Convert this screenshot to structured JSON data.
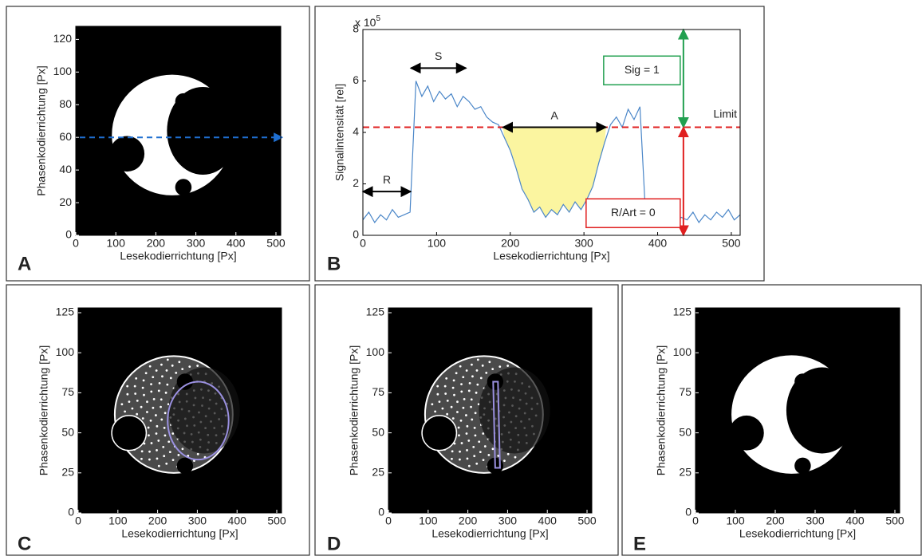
{
  "chart_data": [
    {
      "type": "image",
      "panel_label": "A",
      "x_label": "Lesekodierrichtung [Px]",
      "y_label": "Phasenkodierrichtung [Px]",
      "xlim": [
        0,
        512
      ],
      "ylim": [
        0,
        128
      ],
      "xticks": [
        0,
        100,
        200,
        300,
        400,
        500
      ],
      "yticks": [
        0,
        20,
        40,
        60,
        80,
        100,
        120
      ],
      "profile_y": 60,
      "profile_color": "#1f6fd1"
    },
    {
      "type": "line",
      "panel_label": "B",
      "x_label": "Lesekodierrichtung [Px]",
      "y_label": "Signalintensität [rel]",
      "y_multiplier": "x 10",
      "y_exponent": "5",
      "xlim": [
        0,
        512
      ],
      "ylim": [
        0,
        8
      ],
      "xticks": [
        0,
        100,
        200,
        300,
        400,
        500
      ],
      "yticks": [
        0,
        2,
        4,
        6,
        8
      ],
      "color": "#4a86c8",
      "x": [
        0,
        8,
        16,
        24,
        32,
        40,
        48,
        56,
        64,
        72,
        80,
        88,
        96,
        104,
        112,
        120,
        128,
        136,
        144,
        152,
        160,
        168,
        176,
        184,
        192,
        200,
        208,
        216,
        224,
        232,
        240,
        248,
        256,
        264,
        272,
        280,
        288,
        296,
        304,
        312,
        320,
        328,
        336,
        344,
        352,
        360,
        368,
        376,
        384,
        392,
        400,
        408,
        416,
        424,
        432,
        440,
        448,
        456,
        464,
        472,
        480,
        488,
        496,
        504,
        512
      ],
      "values": [
        0.6,
        0.9,
        0.5,
        0.8,
        0.6,
        1.0,
        0.7,
        0.8,
        0.9,
        6.0,
        5.4,
        5.8,
        5.2,
        5.6,
        5.3,
        5.5,
        5.0,
        5.4,
        5.2,
        4.9,
        5.0,
        4.6,
        4.4,
        4.3,
        3.8,
        3.3,
        2.6,
        1.8,
        1.4,
        0.9,
        1.1,
        0.7,
        1.0,
        0.8,
        1.2,
        0.9,
        1.3,
        1.0,
        1.4,
        1.9,
        2.8,
        3.6,
        4.3,
        4.6,
        4.2,
        4.9,
        4.5,
        5.0,
        0.6,
        0.5,
        0.8,
        0.6,
        0.9,
        0.5,
        0.7,
        0.6,
        0.9,
        0.5,
        0.8,
        0.6,
        0.9,
        0.7,
        1.0,
        0.6,
        0.8
      ],
      "limit": 4.2,
      "limit_label": "Limit",
      "limit_color": "#e02020",
      "regions": [
        {
          "label": "R",
          "x": [
            0,
            65
          ],
          "y": 1.7
        },
        {
          "label": "S",
          "x": [
            65,
            140
          ],
          "y": 6.5
        },
        {
          "label": "A",
          "x": [
            190,
            330
          ],
          "y": 4.2
        }
      ],
      "area_color": "#fbf5a0",
      "levels": [
        {
          "label": "Sig = 1",
          "x": 435,
          "y": [
            4.2,
            8
          ],
          "color": "#22a050"
        },
        {
          "label": "R/Art = 0",
          "x": 435,
          "y": [
            0,
            4.2
          ],
          "color": "#e02020"
        }
      ]
    },
    {
      "type": "image",
      "panel_label": "C",
      "x_label": "Lesekodierrichtung [Px]",
      "y_label": "Phasenkodierrichtung [Px]",
      "xlim": [
        0,
        512
      ],
      "ylim": [
        0,
        128
      ],
      "xticks": [
        0,
        100,
        200,
        300,
        400,
        500
      ],
      "yticks": [
        0,
        25,
        50,
        75,
        100,
        125
      ]
    },
    {
      "type": "image",
      "panel_label": "D",
      "x_label": "Lesekodierrichtung [Px]",
      "y_label": "Phasenkodierrichtung [Px]",
      "xlim": [
        0,
        512
      ],
      "ylim": [
        0,
        128
      ],
      "xticks": [
        0,
        100,
        200,
        300,
        400,
        500
      ],
      "yticks": [
        0,
        25,
        50,
        75,
        100,
        125
      ]
    },
    {
      "type": "image",
      "panel_label": "E",
      "x_label": "Lesekodierrichtung [Px]",
      "y_label": "Phasenkodierrichtung [Px]",
      "xlim": [
        0,
        512
      ],
      "ylim": [
        0,
        128
      ],
      "xticks": [
        0,
        100,
        200,
        300,
        400,
        500
      ],
      "yticks": [
        0,
        25,
        50,
        75,
        100,
        125
      ]
    }
  ]
}
